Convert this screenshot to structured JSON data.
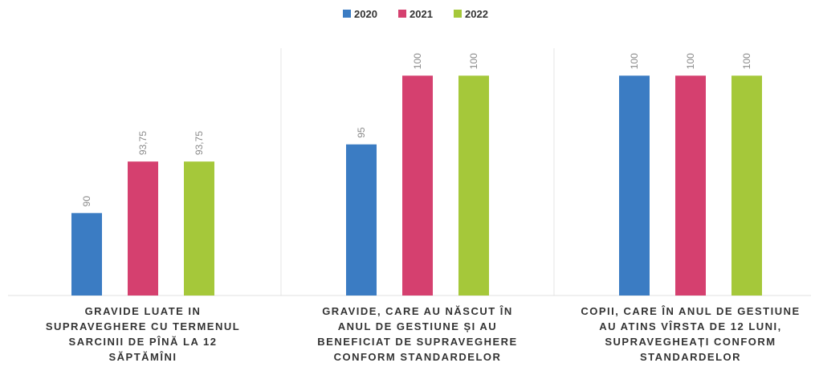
{
  "chart_data": {
    "type": "bar",
    "categories": [
      [
        "GRAVIDE LUATE  IN",
        "SUPRAVEGHERE CU TERMENUL",
        "SARCINII DE PÎNĂ LA 12",
        "SĂPTĂMÎNI"
      ],
      [
        "GRAVIDE, CARE AU NĂSCUT ÎN",
        "ANUL DE GESTIUNE  ȘI AU",
        "BENEFICIAT DE SUPRAVEGHERE",
        "CONFORM STANDARDELOR"
      ],
      [
        "COPII, CARE ÎN ANUL DE GESTIUNE",
        "AU ATINS VÎRSTA DE 12 LUNI,",
        "SUPRAVEGHEAȚI CONFORM",
        "STANDARDELOR"
      ]
    ],
    "series": [
      {
        "name": "2020",
        "color": "#3b7cc3",
        "values": [
          90,
          95,
          100
        ],
        "value_labels": [
          "90",
          "95",
          "100"
        ]
      },
      {
        "name": "2021",
        "color": "#d5406f",
        "values": [
          93.75,
          100,
          100
        ],
        "value_labels": [
          "93,75",
          "100",
          "100"
        ]
      },
      {
        "name": "2022",
        "color": "#a5c83a",
        "values": [
          93.75,
          100,
          100
        ],
        "value_labels": [
          "93,75",
          "100",
          "100"
        ]
      }
    ],
    "ylim": [
      84,
      102
    ],
    "legend": "top"
  }
}
